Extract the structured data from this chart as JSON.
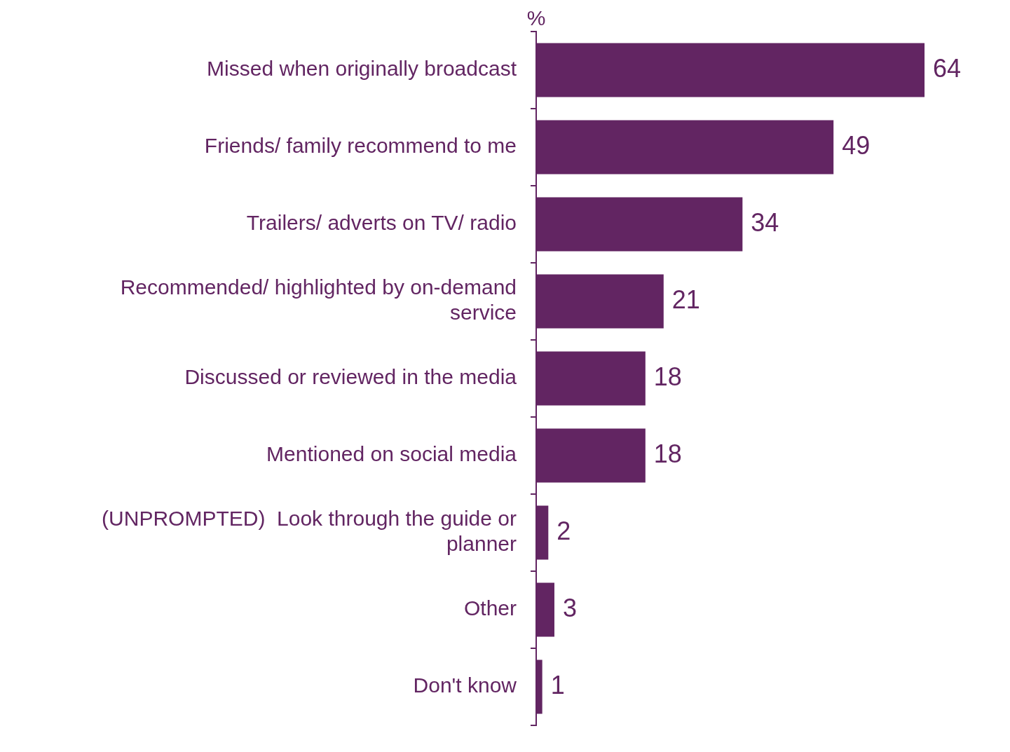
{
  "chart_data": {
    "type": "bar",
    "orientation": "horizontal",
    "categories": [
      "Missed when originally broadcast",
      "Friends/ family recommend to me",
      "Trailers/ adverts on TV/ radio",
      "Recommended/ highlighted by on-demand service",
      "Discussed or reviewed in the media",
      "Mentioned on social media",
      "(UNPROMPTED)  Look through the guide or planner",
      "Other",
      "Don't know"
    ],
    "values": [
      64,
      49,
      34,
      21,
      18,
      18,
      2,
      3,
      1
    ],
    "color": "#622562",
    "data_labels": true,
    "annotations": [
      "%"
    ],
    "legend": false
  }
}
